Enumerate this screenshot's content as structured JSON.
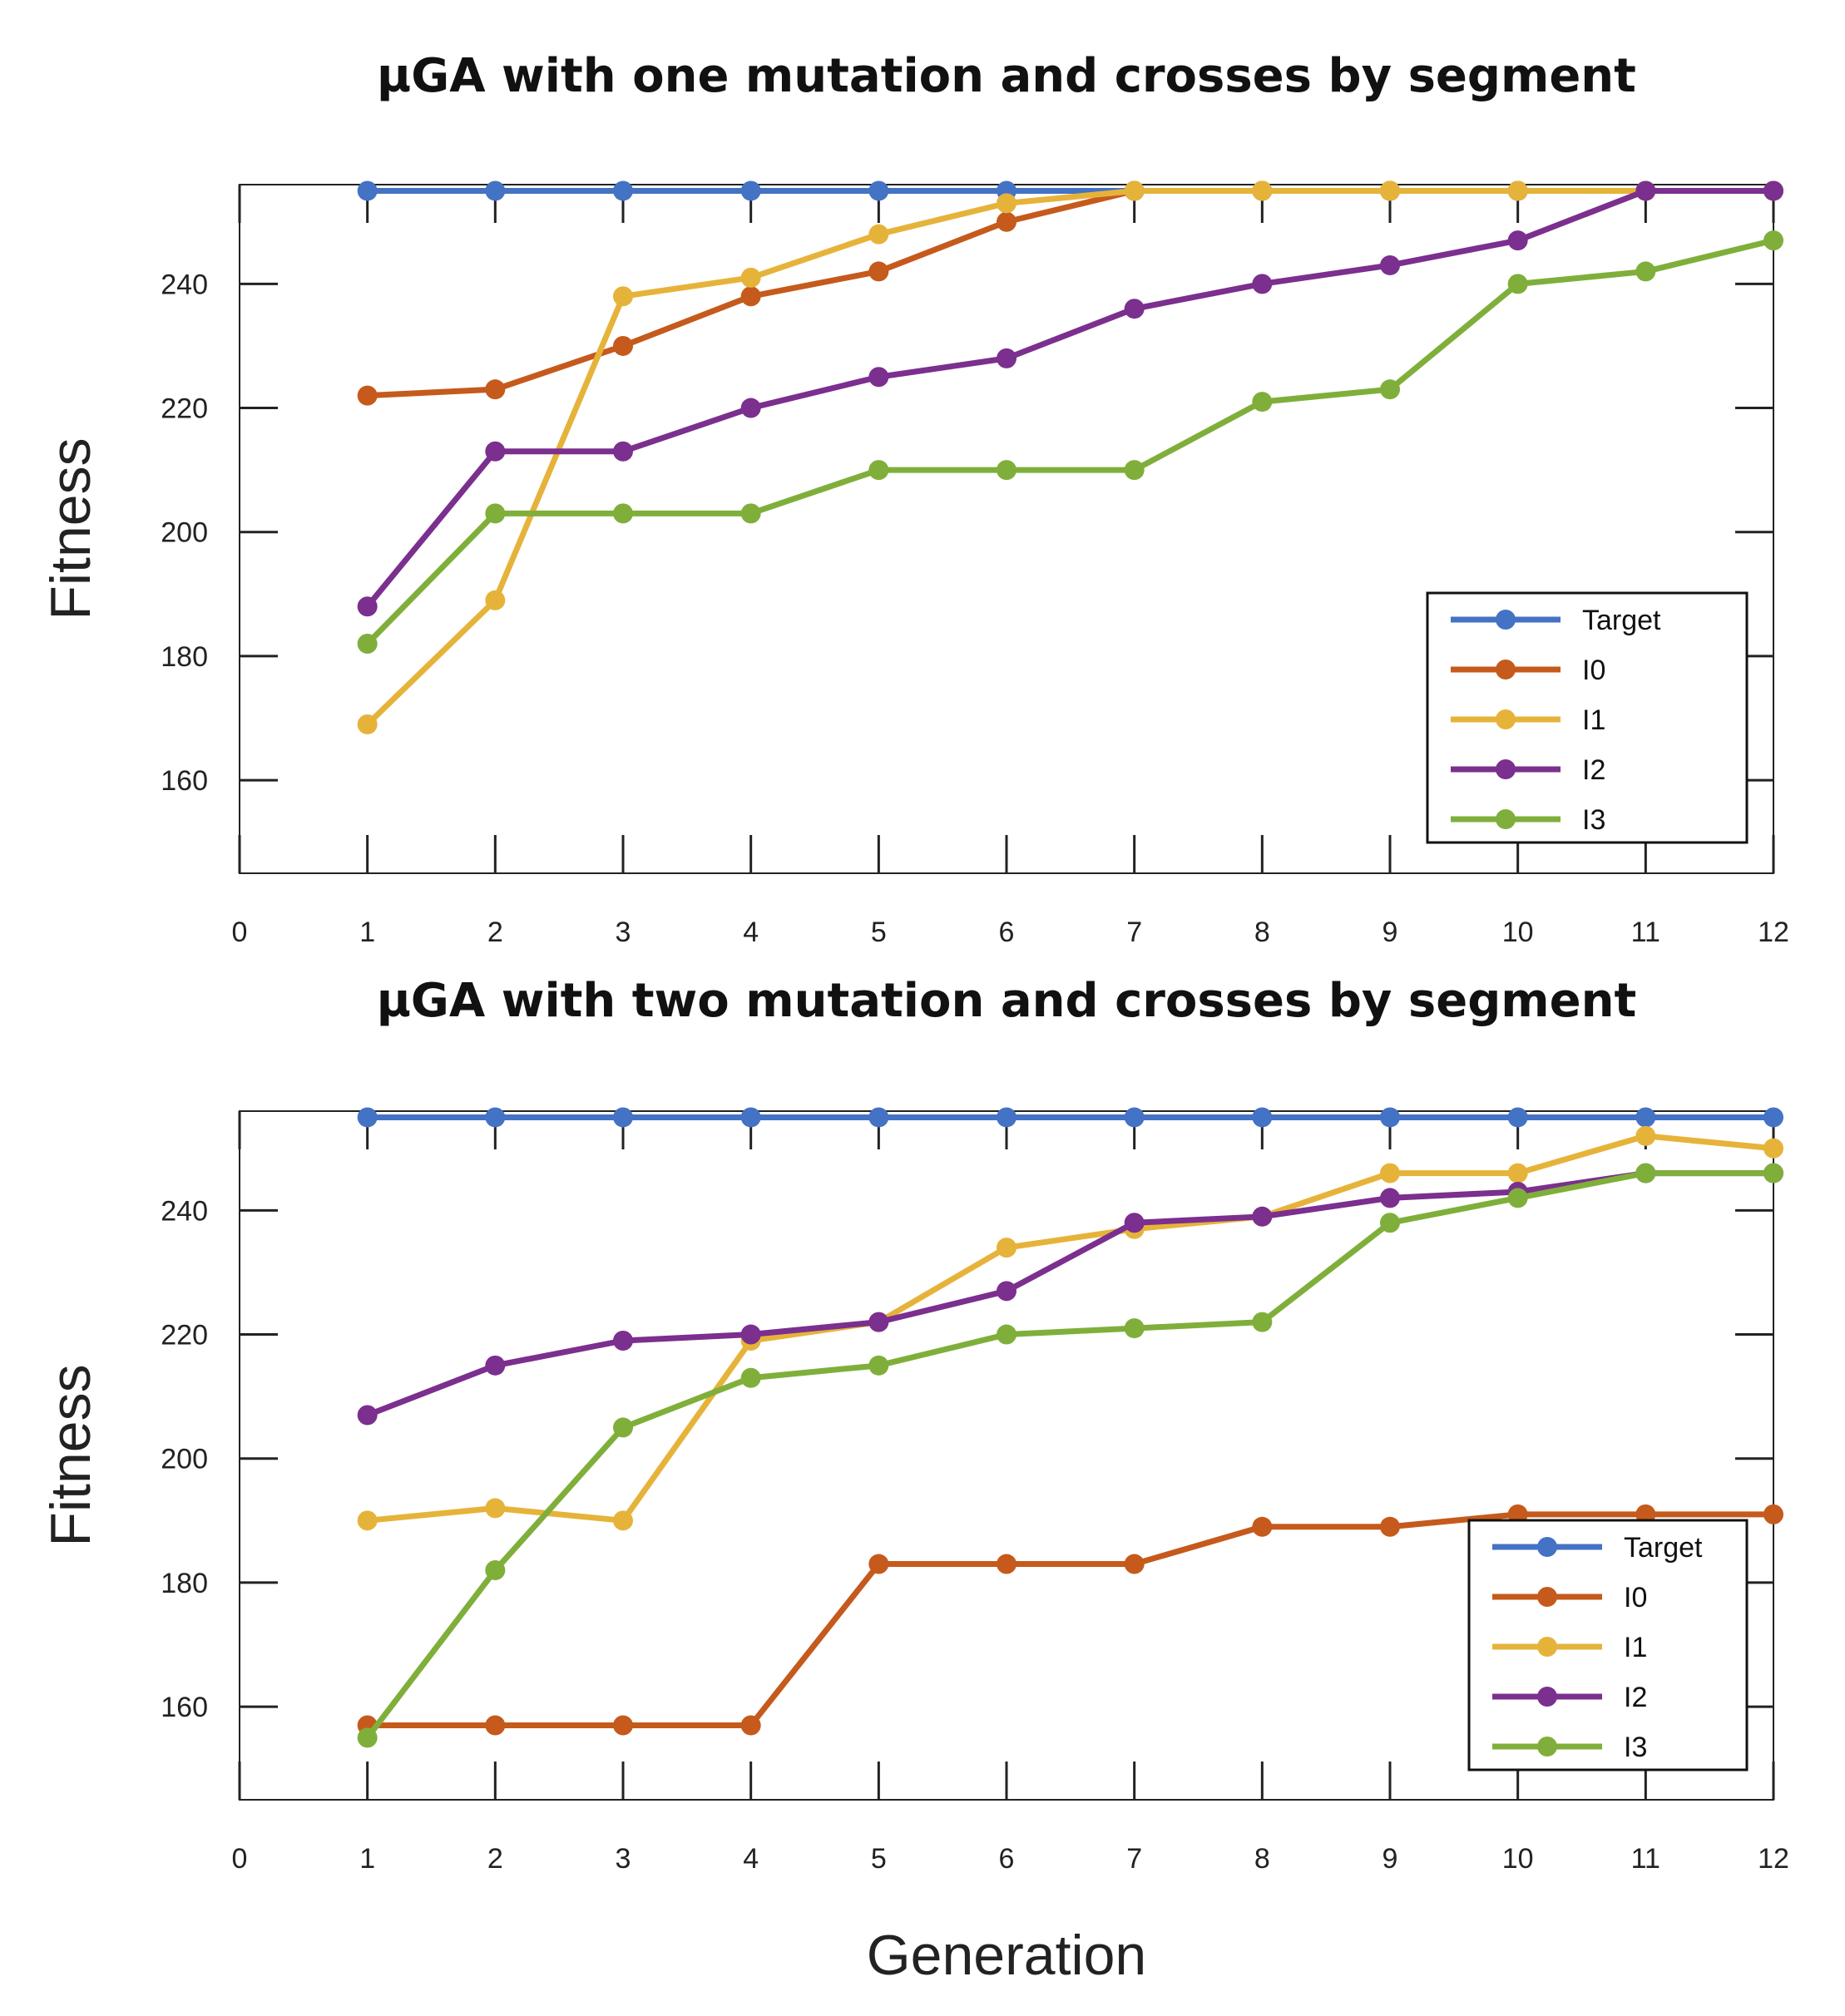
{
  "chart_data": [
    {
      "type": "line",
      "title": "µGA with one mutation and crosses by segment",
      "ylabel": "Fitness",
      "xlabel": "",
      "x": [
        1,
        2,
        3,
        4,
        5,
        6,
        7,
        8,
        9,
        10,
        11,
        12
      ],
      "xlim": [
        0,
        12
      ],
      "ylim": [
        145,
        256
      ],
      "xticks": [
        0,
        1,
        2,
        3,
        4,
        5,
        6,
        7,
        8,
        9,
        10,
        11,
        12
      ],
      "yticks": [
        160,
        180,
        200,
        220,
        240
      ],
      "legend_position": "bottom-right",
      "series": [
        {
          "name": "Target",
          "color": "#4472C4",
          "values": [
            255,
            255,
            255,
            255,
            255,
            255,
            255,
            255,
            255,
            255,
            255,
            255
          ]
        },
        {
          "name": "I0",
          "color": "#C55A1C",
          "values": [
            222,
            223,
            230,
            238,
            242,
            250,
            255,
            255,
            255,
            255,
            255,
            255
          ]
        },
        {
          "name": "I1",
          "color": "#E6B33A",
          "values": [
            169,
            189,
            238,
            241,
            248,
            253,
            255,
            255,
            255,
            255,
            255,
            255
          ]
        },
        {
          "name": "I2",
          "color": "#7B2F8E",
          "values": [
            188,
            213,
            213,
            220,
            225,
            228,
            236,
            240,
            243,
            247,
            255,
            255
          ]
        },
        {
          "name": "I3",
          "color": "#7FAF3A",
          "values": [
            182,
            203,
            203,
            203,
            210,
            210,
            210,
            221,
            223,
            240,
            242,
            247
          ]
        }
      ]
    },
    {
      "type": "line",
      "title": "µGA with two mutation and crosses by segment",
      "ylabel": "Fitness",
      "xlabel": "Generation",
      "x": [
        1,
        2,
        3,
        4,
        5,
        6,
        7,
        8,
        9,
        10,
        11,
        12
      ],
      "xlim": [
        0,
        12
      ],
      "ylim": [
        145,
        256
      ],
      "xticks": [
        0,
        1,
        2,
        3,
        4,
        5,
        6,
        7,
        8,
        9,
        10,
        11,
        12
      ],
      "yticks": [
        160,
        180,
        200,
        220,
        240
      ],
      "legend_position": "bottom-right",
      "series": [
        {
          "name": "Target",
          "color": "#4472C4",
          "values": [
            255,
            255,
            255,
            255,
            255,
            255,
            255,
            255,
            255,
            255,
            255,
            255
          ]
        },
        {
          "name": "I0",
          "color": "#C55A1C",
          "values": [
            157,
            157,
            157,
            157,
            183,
            183,
            183,
            189,
            189,
            191,
            191,
            191
          ]
        },
        {
          "name": "I1",
          "color": "#E6B33A",
          "values": [
            190,
            192,
            190,
            219,
            222,
            234,
            237,
            239,
            246,
            246,
            252,
            250
          ]
        },
        {
          "name": "I2",
          "color": "#7B2F8E",
          "values": [
            207,
            215,
            219,
            220,
            222,
            227,
            238,
            239,
            242,
            243,
            246,
            246
          ]
        },
        {
          "name": "I3",
          "color": "#7FAF3A",
          "values": [
            155,
            182,
            205,
            213,
            215,
            220,
            221,
            222,
            238,
            242,
            246,
            246
          ]
        }
      ]
    }
  ]
}
